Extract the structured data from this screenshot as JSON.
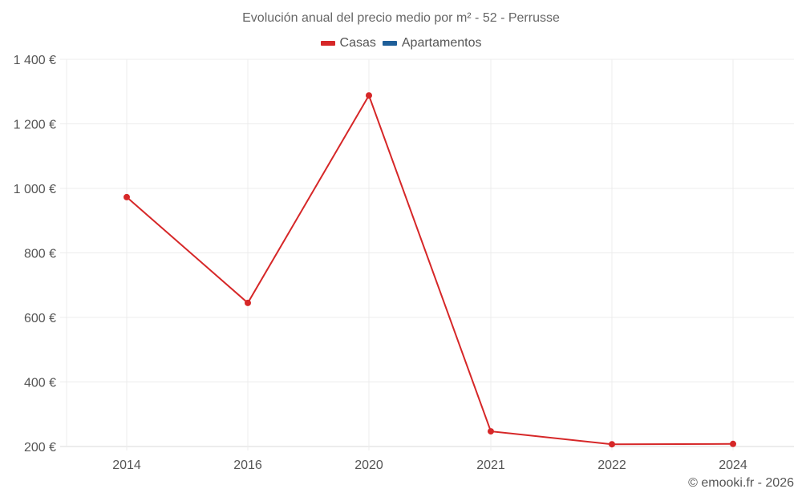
{
  "title": "Evolución anual del precio medio por m² - 52 - Perrusse",
  "legend": [
    {
      "label": "Casas",
      "color": "#d62728"
    },
    {
      "label": "Apartamentos",
      "color": "#1f5f99"
    }
  ],
  "credit": "© emooki.fr - 2026",
  "chart_data": {
    "type": "line",
    "title": "Evolución anual del precio medio por m² - 52 - Perrusse",
    "xlabel": "",
    "ylabel": "",
    "categories": [
      "2014",
      "2016",
      "2020",
      "2021",
      "2022",
      "2024"
    ],
    "series": [
      {
        "name": "Casas",
        "color": "#d62728",
        "values": [
          973,
          645,
          1288,
          247,
          207,
          208
        ]
      },
      {
        "name": "Apartamentos",
        "color": "#1f5f99",
        "values": []
      }
    ],
    "yticks": [
      "200 €",
      "400 €",
      "600 €",
      "800 €",
      "1 000 €",
      "1 200 €",
      "1 400 €"
    ],
    "ytick_values": [
      200,
      400,
      600,
      800,
      1000,
      1200,
      1400
    ],
    "ylim": [
      200,
      1400
    ],
    "grid": true,
    "legend_position": "top"
  }
}
